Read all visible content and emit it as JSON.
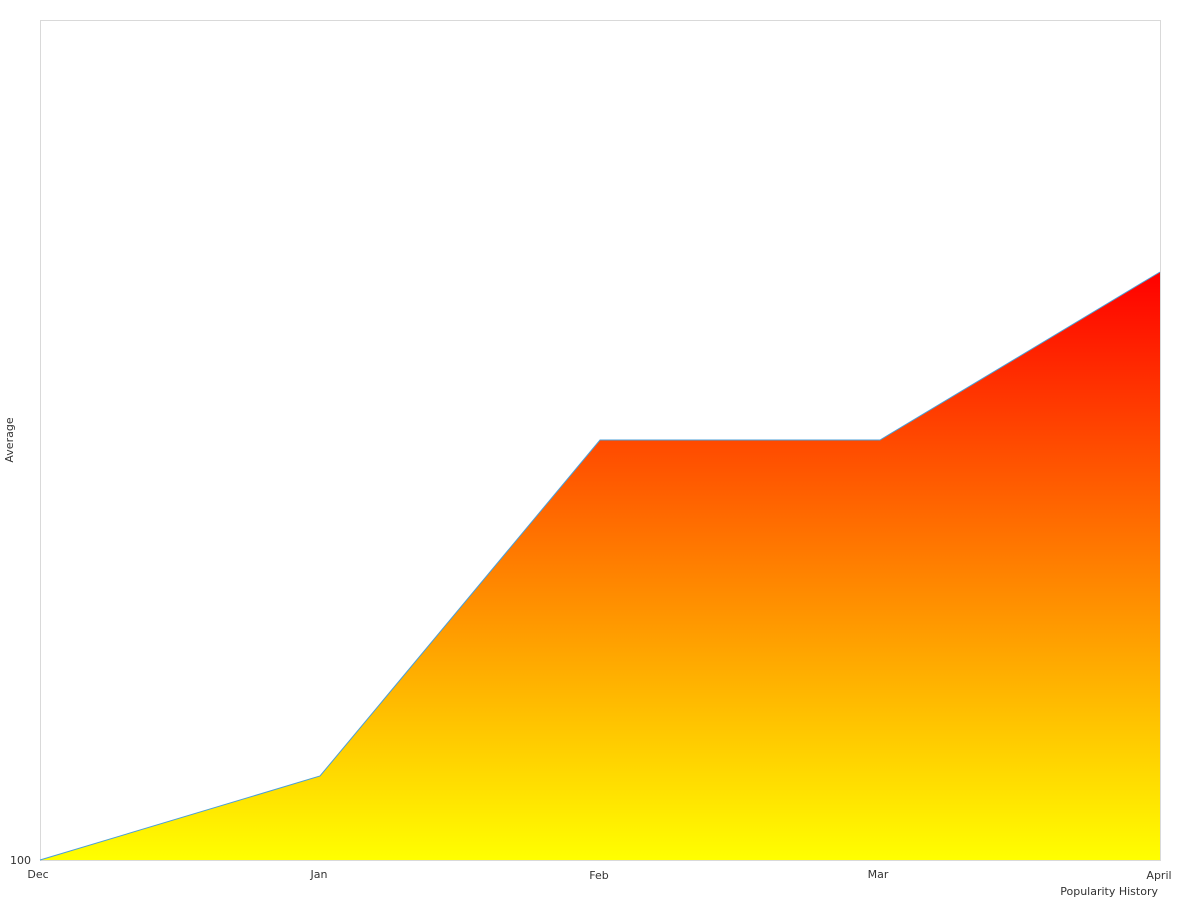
{
  "chart_data": {
    "type": "area",
    "categories": [
      "Dec",
      "Jan",
      "Feb",
      "Mar",
      "April"
    ],
    "values": [
      100,
      104.2,
      121,
      121,
      129.4
    ],
    "xlabel": "Popularity History",
    "ylabel": "Average",
    "y_tick_labels": [
      "100"
    ],
    "ylim": [
      100,
      142
    ],
    "grid": false,
    "legend": "none",
    "line_color": "#4a9fd8",
    "fill_gradient": {
      "top": "#ff0000",
      "bottom": "#ffff00"
    },
    "border_color": "#d9d9d9"
  }
}
